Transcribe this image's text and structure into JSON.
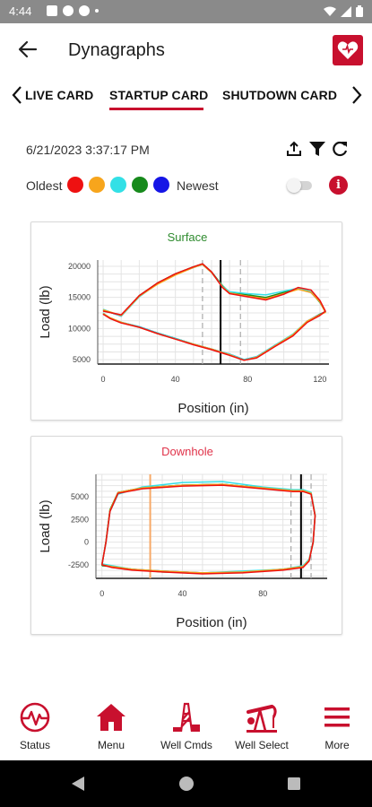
{
  "status_bar": {
    "time": "4:44"
  },
  "app_bar": {
    "title": "Dynagraphs"
  },
  "tabs": [
    {
      "label": "LIVE CARD"
    },
    {
      "label": "STARTUP CARD"
    },
    {
      "label": "SHUTDOWN CARD"
    }
  ],
  "active_tab": "STARTUP CARD",
  "info": {
    "timestamp": "6/21/2023 3:37:17 PM",
    "legend_oldest": "Oldest",
    "legend_newest": "Newest",
    "legend_colors": [
      "#ee1111",
      "#f7a51c",
      "#33e0e6",
      "#178a1c",
      "#1515e6"
    ],
    "info_glyph": "i"
  },
  "colors": {
    "accent": "#c8102e",
    "surface_title": "#2e8b2e",
    "downhole_title": "#e0334a"
  },
  "icons": [
    "back-arrow-icon",
    "logo-heart-icon",
    "chevron-left-icon",
    "chevron-right-icon",
    "upload-icon",
    "filter-icon",
    "refresh-icon",
    "info-icon",
    "status-icon",
    "home-icon",
    "derrick-icon",
    "pumpjack-icon",
    "menu-icon"
  ],
  "chart_data": [
    {
      "type": "line",
      "title": "Surface",
      "xlabel": "Position (in)",
      "ylabel": "Load (lb)",
      "xlim": [
        -3,
        125
      ],
      "ylim": [
        4300,
        21000
      ],
      "xticks": [
        0,
        40,
        80,
        120
      ],
      "yticks": [
        5000,
        10000,
        15000,
        20000
      ],
      "grid": true,
      "markers": [
        {
          "x": 65,
          "style": "solid",
          "color": "#000000"
        },
        {
          "x": 55,
          "style": "dashed",
          "color": "#aaaaaa"
        },
        {
          "x": 76,
          "style": "dashed",
          "color": "#aaaaaa"
        }
      ],
      "series": [
        {
          "color": "#1515e6",
          "x": [
            0,
            10,
            20,
            30,
            40,
            50,
            55,
            60,
            66,
            70,
            80,
            90,
            100,
            108,
            115,
            120,
            123,
            120,
            113,
            105,
            95,
            85,
            78,
            70,
            60,
            50,
            40,
            30,
            20,
            10,
            4,
            0
          ],
          "y": [
            13000,
            12000,
            15200,
            17200,
            18700,
            19800,
            20300,
            19000,
            16800,
            15700,
            15300,
            14900,
            15700,
            16400,
            15800,
            14300,
            12700,
            12300,
            11200,
            9000,
            7300,
            5500,
            5000,
            5900,
            6700,
            7500,
            8400,
            9300,
            10300,
            11000,
            11600,
            12400
          ]
        },
        {
          "color": "#178a1c",
          "x": [
            0,
            10,
            20,
            30,
            40,
            50,
            55,
            60,
            66,
            70,
            80,
            90,
            100,
            108,
            115,
            120,
            123,
            120,
            113,
            105,
            95,
            85,
            78,
            70,
            60,
            50,
            40,
            30,
            20,
            10,
            4,
            0
          ],
          "y": [
            12900,
            12100,
            15300,
            17300,
            18800,
            19900,
            20400,
            19100,
            16900,
            15800,
            15400,
            15000,
            15800,
            16500,
            15900,
            14200,
            12700,
            12300,
            11100,
            8900,
            7200,
            5400,
            5000,
            5800,
            6700,
            7500,
            8400,
            9300,
            10200,
            11000,
            11700,
            12400
          ]
        },
        {
          "color": "#33e0e6",
          "x": [
            0,
            10,
            20,
            30,
            40,
            50,
            55,
            60,
            66,
            70,
            80,
            90,
            100,
            108,
            115,
            120,
            123,
            120,
            113,
            105,
            95,
            85,
            78,
            70,
            60,
            50,
            40,
            30,
            20,
            10,
            4,
            0
          ],
          "y": [
            13100,
            12000,
            15100,
            17200,
            18700,
            19800,
            20300,
            19000,
            16800,
            15900,
            15600,
            15400,
            16000,
            16500,
            15900,
            14300,
            12700,
            12200,
            11200,
            9100,
            7300,
            5500,
            5000,
            5900,
            6700,
            7500,
            8400,
            9300,
            10300,
            11000,
            11600,
            12500
          ]
        },
        {
          "color": "#f7a51c",
          "x": [
            0,
            10,
            20,
            30,
            40,
            50,
            55,
            60,
            66,
            70,
            80,
            90,
            100,
            108,
            115,
            120,
            123,
            120,
            113,
            105,
            95,
            85,
            78,
            70,
            60,
            50,
            40,
            30,
            20,
            10,
            4,
            0
          ],
          "y": [
            13000,
            12100,
            15200,
            17100,
            18600,
            19800,
            20300,
            19000,
            16700,
            15700,
            15200,
            14800,
            15600,
            16300,
            15800,
            14300,
            12600,
            12200,
            11200,
            9000,
            7200,
            5400,
            4900,
            5800,
            6700,
            7500,
            8300,
            9200,
            10200,
            11000,
            11700,
            12400
          ]
        },
        {
          "color": "#ee1111",
          "x": [
            0,
            10,
            20,
            30,
            40,
            50,
            55,
            60,
            66,
            70,
            80,
            90,
            100,
            108,
            115,
            120,
            123,
            120,
            113,
            105,
            95,
            85,
            78,
            70,
            60,
            50,
            40,
            30,
            20,
            10,
            4,
            0
          ],
          "y": [
            12800,
            12200,
            15300,
            17300,
            18800,
            19900,
            20400,
            19100,
            16600,
            15600,
            15100,
            14600,
            15500,
            16600,
            16200,
            14500,
            12800,
            12100,
            11000,
            8800,
            7100,
            5300,
            4900,
            5700,
            6600,
            7400,
            8300,
            9200,
            10200,
            10900,
            11600,
            12300
          ]
        }
      ]
    },
    {
      "type": "line",
      "title": "Downhole",
      "xlabel": "Position (in)",
      "ylabel": "Load (lb)",
      "xlim": [
        -3,
        112
      ],
      "ylim": [
        -4000,
        7500
      ],
      "xticks": [
        0,
        40,
        80
      ],
      "yticks": [
        -2500,
        0,
        2500,
        5000
      ],
      "grid": true,
      "markers": [
        {
          "x": 24,
          "style": "solid",
          "color": "#f7a968"
        },
        {
          "x": 99,
          "style": "solid",
          "color": "#000000"
        },
        {
          "x": 94,
          "style": "dashed",
          "color": "#aaaaaa"
        },
        {
          "x": 104,
          "style": "dashed",
          "color": "#aaaaaa"
        }
      ],
      "series": [
        {
          "color": "#1515e6",
          "x": [
            0,
            2,
            4,
            8,
            20,
            40,
            60,
            80,
            95,
            100,
            104,
            106,
            105,
            103,
            100,
            90,
            70,
            50,
            30,
            15,
            5,
            0
          ],
          "y": [
            -2500,
            0,
            3500,
            5500,
            6000,
            6300,
            6400,
            6000,
            5700,
            5700,
            5400,
            3000,
            0,
            -2000,
            -2700,
            -3000,
            -3300,
            -3400,
            -3200,
            -3000,
            -2700,
            -2500
          ]
        },
        {
          "color": "#178a1c",
          "x": [
            0,
            2,
            4,
            8,
            20,
            40,
            60,
            80,
            95,
            100,
            104,
            106,
            105,
            103,
            100,
            90,
            70,
            50,
            30,
            15,
            5,
            0
          ],
          "y": [
            -2600,
            100,
            3600,
            5500,
            6000,
            6300,
            6400,
            6000,
            5700,
            5600,
            5400,
            2900,
            -100,
            -2000,
            -2700,
            -3000,
            -3300,
            -3400,
            -3300,
            -3000,
            -2700,
            -2600
          ]
        },
        {
          "color": "#33e0e6",
          "x": [
            0,
            2,
            4,
            8,
            20,
            40,
            60,
            80,
            95,
            100,
            104,
            106,
            105,
            103,
            100,
            90,
            70,
            50,
            30,
            15,
            5,
            0
          ],
          "y": [
            -2400,
            -100,
            3400,
            5300,
            6100,
            6600,
            6700,
            6100,
            5800,
            5800,
            5500,
            3100,
            100,
            -1900,
            -2600,
            -3000,
            -3200,
            -3400,
            -3200,
            -3000,
            -2600,
            -2400
          ]
        },
        {
          "color": "#f7a51c",
          "x": [
            0,
            2,
            4,
            8,
            20,
            40,
            60,
            80,
            95,
            100,
            104,
            106,
            105,
            103,
            100,
            90,
            70,
            50,
            30,
            15,
            5,
            0
          ],
          "y": [
            -2500,
            0,
            3500,
            5500,
            6000,
            6300,
            6400,
            6000,
            5700,
            5700,
            5400,
            3000,
            0,
            -2000,
            -2700,
            -3000,
            -3300,
            -3400,
            -3200,
            -3000,
            -2700,
            -2500
          ]
        },
        {
          "color": "#ee1111",
          "x": [
            0,
            2,
            4,
            8,
            20,
            40,
            60,
            80,
            95,
            100,
            104,
            106,
            105,
            103,
            100,
            90,
            70,
            50,
            30,
            15,
            5,
            0
          ],
          "y": [
            -2500,
            0,
            3400,
            5400,
            5900,
            6200,
            6300,
            5900,
            5600,
            5600,
            5300,
            2900,
            0,
            -2100,
            -2800,
            -3100,
            -3400,
            -3500,
            -3300,
            -3100,
            -2800,
            -2500
          ]
        }
      ]
    }
  ],
  "bottom_nav": [
    {
      "label": "Status"
    },
    {
      "label": "Menu"
    },
    {
      "label": "Well Cmds"
    },
    {
      "label": "Well Select"
    },
    {
      "label": "More"
    }
  ]
}
